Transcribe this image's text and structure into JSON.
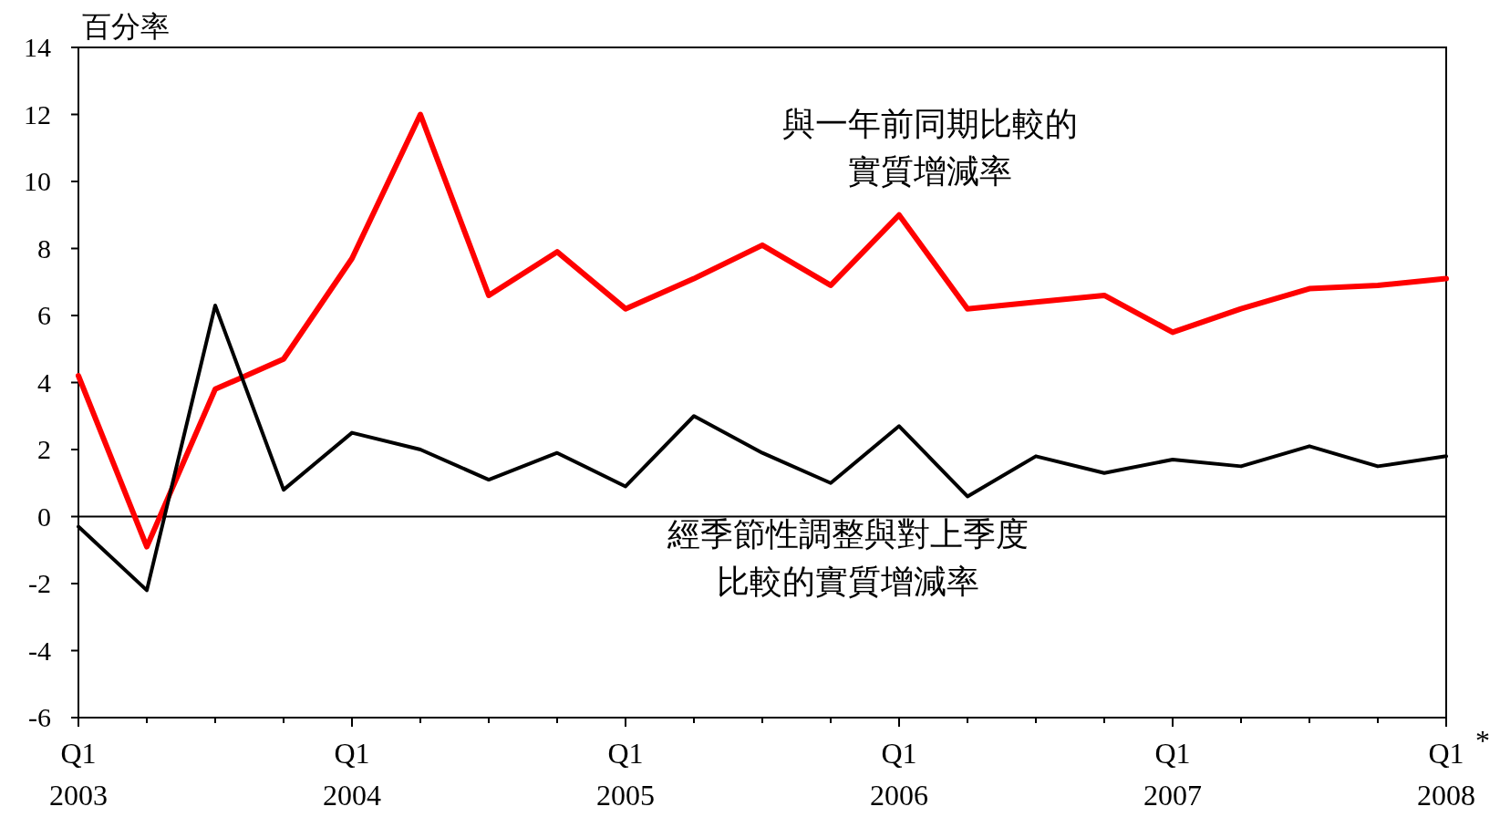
{
  "chart_data": {
    "type": "line",
    "ylabel": "百分率",
    "categories": [
      "Q1\n2003",
      null,
      null,
      null,
      "Q1\n2004",
      null,
      null,
      null,
      "Q1\n2005",
      null,
      null,
      null,
      "Q1\n2006",
      null,
      null,
      null,
      "Q1\n2007",
      null,
      null,
      null,
      "Q1\n2008"
    ],
    "series": [
      {
        "name": "與一年前同期比較的實質增減率",
        "color": "#ff0000",
        "values": [
          4.2,
          -0.9,
          3.8,
          4.7,
          7.7,
          12.0,
          6.6,
          7.9,
          6.2,
          7.1,
          8.1,
          6.9,
          9.0,
          6.2,
          6.4,
          6.6,
          5.5,
          6.2,
          6.8,
          6.9,
          7.1
        ]
      },
      {
        "name": "經季節性調整與對上季度比較的實質增減率",
        "color": "#000000",
        "values": [
          -0.3,
          -2.2,
          6.3,
          0.8,
          2.5,
          2.0,
          1.1,
          1.9,
          0.9,
          3.0,
          1.9,
          1.0,
          2.7,
          0.6,
          1.8,
          1.3,
          1.7,
          1.5,
          2.1,
          1.5,
          1.8
        ]
      }
    ],
    "ylim": [
      -6,
      14
    ],
    "yticks": [
      -6,
      -4,
      -2,
      0,
      2,
      4,
      6,
      8,
      10,
      12,
      14
    ],
    "ref_lines": [
      {
        "axis": "y",
        "value": 0,
        "color": "#000000"
      }
    ],
    "annotations": [
      "*"
    ],
    "grid": false,
    "legend": false
  }
}
